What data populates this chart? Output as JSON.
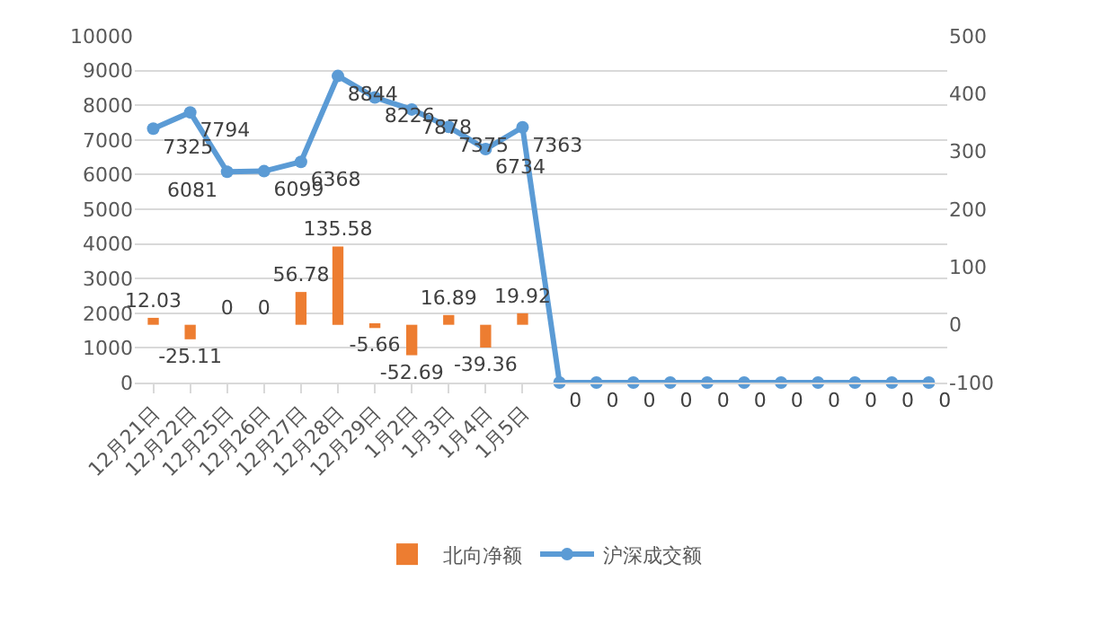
{
  "chart_data": {
    "type": "bar",
    "categories": [
      "12月21日",
      "12月22日",
      "12月25日",
      "12月26日",
      "12月27日",
      "12月28日",
      "12月29日",
      "1月2日",
      "1月3日",
      "1月4日",
      "1月5日",
      null,
      null,
      null,
      null,
      null,
      null,
      null,
      null,
      null,
      null,
      null
    ],
    "series": [
      {
        "name": "北向净额",
        "axis": "y2",
        "color": "#ed7d31",
        "values": [
          12.03,
          -25.11,
          0,
          0,
          56.78,
          135.58,
          -5.66,
          -52.69,
          16.89,
          -39.36,
          19.92,
          null,
          null,
          null,
          null,
          null,
          null,
          null,
          null,
          null,
          null,
          null
        ]
      },
      {
        "name": "沪深成交额",
        "type": "line",
        "axis": "y",
        "color": "#5b9bd5",
        "values": [
          7325,
          7794,
          6081,
          6099,
          6368,
          8844,
          8226,
          7878,
          7375,
          6734,
          7363,
          0,
          0,
          0,
          0,
          0,
          0,
          0,
          0,
          0,
          0,
          0
        ]
      }
    ],
    "ylim": [
      0,
      10000
    ],
    "yticks": [
      0,
      1000,
      2000,
      3000,
      4000,
      5000,
      6000,
      7000,
      8000,
      9000,
      10000
    ],
    "y2lim": [
      -100,
      500
    ],
    "y2ticks": [
      -100,
      0,
      100,
      200,
      300,
      400,
      500
    ],
    "grid": "y",
    "legend": "bottom",
    "marker": "circle",
    "line_style": "solid",
    "data_labels": true
  }
}
